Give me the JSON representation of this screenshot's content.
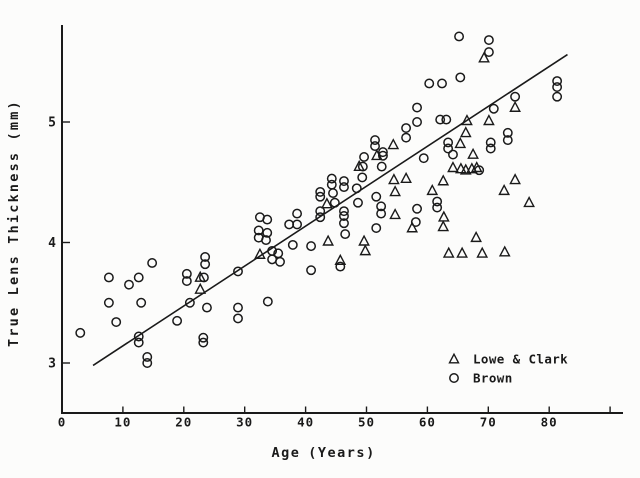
{
  "figure": {
    "background": "#fcfcfb",
    "ink": "#1a1a1a"
  },
  "chart_data": {
    "type": "scatter",
    "title": "",
    "xlabel": "Age (Years)",
    "xlabel_parts": [
      "Age",
      "(Years)"
    ],
    "ylabel": "True Lens Thickness (mm)",
    "xlim": [
      0,
      92
    ],
    "ylim": [
      2.58,
      5.8
    ],
    "grid": false,
    "x_ticks": [
      {
        "v": 0,
        "label": "0"
      },
      {
        "v": 10,
        "label": "10"
      },
      {
        "v": 20,
        "label": "20"
      },
      {
        "v": 30,
        "label": "30"
      },
      {
        "v": 40,
        "label": "40"
      },
      {
        "v": 50,
        "label": "50"
      },
      {
        "v": 60,
        "label": "60"
      },
      {
        "v": 70,
        "label": "70"
      },
      {
        "v": 80,
        "label": "80"
      },
      {
        "v": 90,
        "label": ""
      }
    ],
    "y_ticks": [
      {
        "v": 3,
        "label": "3"
      },
      {
        "v": 4,
        "label": "4"
      },
      {
        "v": 5,
        "label": "5"
      }
    ],
    "legend": {
      "position": "bottom-right",
      "items": [
        {
          "name": "Lowe & Clark",
          "marker": "triangle"
        },
        {
          "name": "Brown",
          "marker": "circle"
        }
      ]
    },
    "fit_line": {
      "x1": 5.1,
      "y1": 2.98,
      "x2": 83.0,
      "y2": 5.56
    },
    "series": [
      {
        "name": "Lowe & Clark",
        "marker": "triangle",
        "points": [
          [
            22.7,
            3.71
          ],
          [
            22.7,
            3.61
          ],
          [
            32.5,
            3.9
          ],
          [
            43.5,
            4.32
          ],
          [
            43.7,
            4.01
          ],
          [
            45.7,
            3.85
          ],
          [
            48.8,
            4.63
          ],
          [
            49.6,
            4.01
          ],
          [
            49.8,
            3.93
          ],
          [
            51.7,
            4.72
          ],
          [
            54.4,
            4.81
          ],
          [
            54.5,
            4.52
          ],
          [
            54.7,
            4.42
          ],
          [
            54.7,
            4.23
          ],
          [
            56.5,
            4.53
          ],
          [
            57.5,
            4.12
          ],
          [
            60.8,
            4.43
          ],
          [
            62.6,
            4.51
          ],
          [
            62.7,
            4.21
          ],
          [
            62.6,
            4.13
          ],
          [
            64.2,
            4.62
          ],
          [
            65.5,
            4.61
          ],
          [
            66.3,
            4.6
          ],
          [
            67.3,
            4.61
          ],
          [
            68.1,
            4.62
          ],
          [
            65.4,
            4.82
          ],
          [
            66.3,
            4.91
          ],
          [
            66.5,
            5.01
          ],
          [
            67.5,
            4.73
          ],
          [
            68.0,
            4.04
          ],
          [
            69.3,
            5.53
          ],
          [
            70.1,
            5.01
          ],
          [
            63.5,
            3.91
          ],
          [
            65.7,
            3.91
          ],
          [
            69.0,
            3.91
          ],
          [
            72.7,
            3.92
          ],
          [
            72.6,
            4.43
          ],
          [
            74.4,
            5.12
          ],
          [
            74.4,
            4.52
          ],
          [
            76.7,
            4.33
          ]
        ]
      },
      {
        "name": "Brown",
        "marker": "circle",
        "points": [
          [
            3.0,
            3.25
          ],
          [
            7.7,
            3.71
          ],
          [
            7.7,
            3.5
          ],
          [
            8.9,
            3.34
          ],
          [
            11.0,
            3.65
          ],
          [
            12.6,
            3.71
          ],
          [
            13.0,
            3.5
          ],
          [
            12.6,
            3.22
          ],
          [
            12.6,
            3.17
          ],
          [
            14.0,
            3.05
          ],
          [
            14.0,
            3.0
          ],
          [
            14.8,
            3.83
          ],
          [
            18.9,
            3.35
          ],
          [
            20.5,
            3.74
          ],
          [
            20.5,
            3.68
          ],
          [
            21.0,
            3.5
          ],
          [
            23.3,
            3.71
          ],
          [
            23.5,
            3.88
          ],
          [
            23.5,
            3.82
          ],
          [
            23.2,
            3.21
          ],
          [
            23.2,
            3.17
          ],
          [
            23.8,
            3.46
          ],
          [
            28.9,
            3.76
          ],
          [
            28.9,
            3.46
          ],
          [
            28.9,
            3.37
          ],
          [
            32.5,
            4.21
          ],
          [
            33.7,
            4.19
          ],
          [
            32.3,
            4.1
          ],
          [
            33.7,
            4.08
          ],
          [
            32.3,
            4.04
          ],
          [
            33.5,
            4.02
          ],
          [
            33.8,
            3.51
          ],
          [
            34.5,
            3.93
          ],
          [
            35.5,
            3.91
          ],
          [
            34.5,
            3.86
          ],
          [
            35.8,
            3.84
          ],
          [
            37.3,
            4.15
          ],
          [
            38.6,
            4.15
          ],
          [
            38.6,
            4.24
          ],
          [
            37.9,
            3.98
          ],
          [
            40.9,
            3.97
          ],
          [
            40.9,
            3.77
          ],
          [
            42.4,
            4.42
          ],
          [
            42.4,
            4.38
          ],
          [
            42.4,
            4.26
          ],
          [
            42.4,
            4.21
          ],
          [
            44.3,
            4.53
          ],
          [
            44.3,
            4.48
          ],
          [
            44.5,
            4.41
          ],
          [
            44.8,
            4.33
          ],
          [
            46.3,
            4.51
          ],
          [
            46.3,
            4.46
          ],
          [
            46.3,
            4.26
          ],
          [
            46.3,
            4.22
          ],
          [
            46.3,
            4.16
          ],
          [
            46.5,
            4.07
          ],
          [
            45.7,
            3.8
          ],
          [
            49.4,
            4.63
          ],
          [
            52.5,
            4.63
          ],
          [
            49.3,
            4.54
          ],
          [
            48.4,
            4.45
          ],
          [
            48.6,
            4.33
          ],
          [
            51.6,
            4.38
          ],
          [
            52.4,
            4.3
          ],
          [
            52.4,
            4.24
          ],
          [
            51.6,
            4.12
          ],
          [
            51.4,
            4.85
          ],
          [
            51.4,
            4.8
          ],
          [
            52.7,
            4.75
          ],
          [
            52.7,
            4.72
          ],
          [
            49.6,
            4.71
          ],
          [
            56.5,
            4.95
          ],
          [
            56.5,
            4.87
          ],
          [
            58.3,
            5.12
          ],
          [
            58.3,
            5.0
          ],
          [
            59.4,
            4.7
          ],
          [
            58.3,
            4.28
          ],
          [
            58.1,
            4.17
          ],
          [
            60.3,
            5.32
          ],
          [
            62.4,
            5.32
          ],
          [
            62.1,
            5.02
          ],
          [
            63.1,
            5.02
          ],
          [
            63.4,
            4.83
          ],
          [
            63.4,
            4.78
          ],
          [
            61.6,
            4.34
          ],
          [
            61.6,
            4.29
          ],
          [
            64.2,
            4.73
          ],
          [
            65.2,
            5.71
          ],
          [
            65.4,
            5.37
          ],
          [
            68.5,
            4.6
          ],
          [
            70.1,
            5.68
          ],
          [
            70.1,
            5.58
          ],
          [
            70.4,
            4.83
          ],
          [
            70.4,
            4.78
          ],
          [
            70.9,
            5.11
          ],
          [
            73.2,
            4.91
          ],
          [
            73.2,
            4.85
          ],
          [
            74.4,
            5.21
          ],
          [
            81.3,
            5.34
          ],
          [
            81.3,
            5.29
          ],
          [
            81.3,
            5.21
          ]
        ]
      }
    ]
  }
}
